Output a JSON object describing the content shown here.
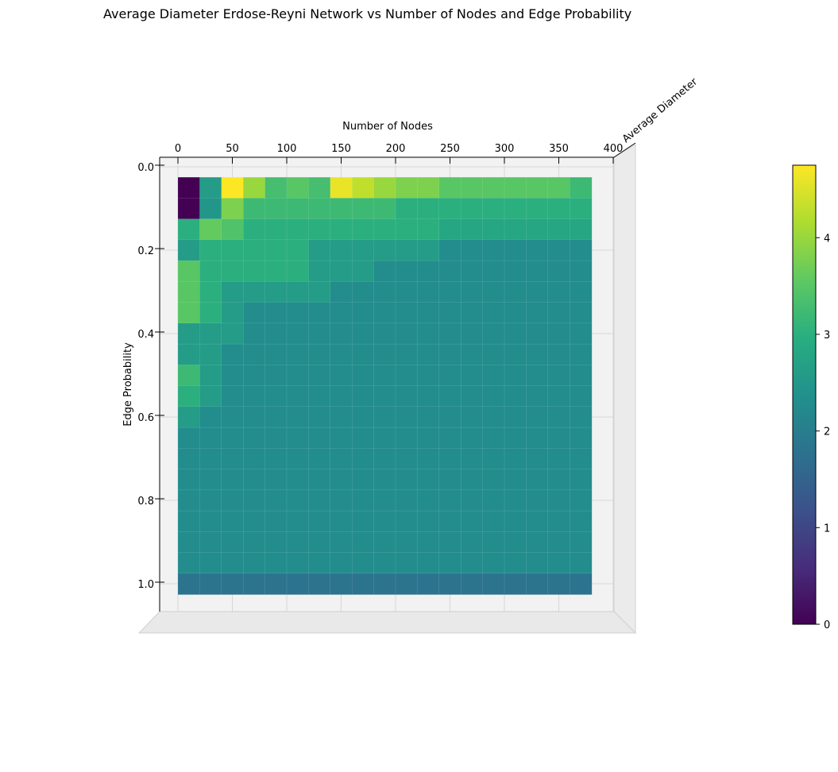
{
  "chart_data": {
    "type": "surface",
    "title": "Average Diameter Erdose-Reyni Network vs Number of Nodes and Edge Probability",
    "xlabel": "Number of Nodes",
    "ylabel": "Edge Probability",
    "zlabel": "Average Diameter",
    "x_ticks": [
      "0",
      "50",
      "100",
      "150",
      "200",
      "250",
      "300",
      "350",
      "400"
    ],
    "y_ticks": [
      "0.0",
      "0.2",
      "0.4",
      "0.6",
      "0.8",
      "1.0"
    ],
    "xlim": [
      0,
      400
    ],
    "ylim": [
      0,
      1
    ],
    "colorbar": {
      "ticks": [
        "0",
        "1",
        "2",
        "3",
        "4"
      ],
      "range": [
        0,
        4.75
      ],
      "colormap": "viridis"
    },
    "nodes": [
      10,
      30,
      50,
      70,
      90,
      110,
      130,
      150,
      170,
      190,
      210,
      230,
      250,
      270,
      290,
      310,
      330,
      350,
      370
    ],
    "edge_probabilities": [
      0.05,
      0.1,
      0.15,
      0.2,
      0.25,
      0.3,
      0.35,
      0.4,
      0.45,
      0.5,
      0.55,
      0.6,
      0.65,
      0.7,
      0.75,
      0.8,
      0.85,
      0.9,
      0.95,
      1.0
    ],
    "z": [
      [
        0.0,
        2.6,
        4.75,
        4.0,
        3.3,
        3.5,
        3.3,
        4.6,
        4.3,
        4.0,
        3.8,
        3.8,
        3.5,
        3.5,
        3.5,
        3.5,
        3.5,
        3.5,
        3.2
      ],
      [
        0.0,
        2.5,
        3.8,
        3.2,
        3.2,
        3.2,
        3.2,
        3.2,
        3.2,
        3.2,
        3.0,
        3.0,
        3.0,
        3.0,
        3.0,
        3.0,
        3.0,
        3.0,
        3.0
      ],
      [
        3.0,
        3.6,
        3.4,
        3.0,
        3.0,
        3.0,
        3.0,
        3.0,
        3.0,
        3.0,
        3.0,
        3.0,
        2.8,
        2.8,
        2.8,
        2.8,
        2.8,
        2.8,
        2.8
      ],
      [
        2.6,
        3.0,
        3.0,
        3.0,
        3.0,
        3.0,
        2.6,
        2.6,
        2.6,
        2.6,
        2.6,
        2.6,
        2.3,
        2.3,
        2.3,
        2.3,
        2.3,
        2.3,
        2.3
      ],
      [
        3.5,
        3.0,
        3.0,
        3.0,
        3.0,
        3.0,
        2.6,
        2.6,
        2.6,
        2.3,
        2.3,
        2.3,
        2.3,
        2.3,
        2.3,
        2.3,
        2.3,
        2.3,
        2.3
      ],
      [
        3.5,
        3.0,
        2.6,
        2.6,
        2.6,
        2.6,
        2.6,
        2.3,
        2.3,
        2.3,
        2.3,
        2.3,
        2.3,
        2.3,
        2.3,
        2.3,
        2.3,
        2.3,
        2.3
      ],
      [
        3.5,
        3.0,
        2.6,
        2.3,
        2.3,
        2.3,
        2.3,
        2.3,
        2.3,
        2.3,
        2.3,
        2.3,
        2.3,
        2.3,
        2.3,
        2.3,
        2.3,
        2.3,
        2.3
      ],
      [
        2.6,
        2.6,
        2.6,
        2.3,
        2.3,
        2.3,
        2.3,
        2.3,
        2.3,
        2.3,
        2.3,
        2.3,
        2.3,
        2.3,
        2.3,
        2.3,
        2.3,
        2.3,
        2.3
      ],
      [
        2.6,
        2.6,
        2.3,
        2.3,
        2.3,
        2.3,
        2.3,
        2.3,
        2.3,
        2.3,
        2.3,
        2.3,
        2.3,
        2.3,
        2.3,
        2.3,
        2.3,
        2.3,
        2.3
      ],
      [
        3.2,
        2.6,
        2.3,
        2.3,
        2.3,
        2.3,
        2.3,
        2.3,
        2.3,
        2.3,
        2.3,
        2.3,
        2.3,
        2.3,
        2.3,
        2.3,
        2.3,
        2.3,
        2.3
      ],
      [
        3.0,
        2.6,
        2.3,
        2.3,
        2.3,
        2.3,
        2.3,
        2.3,
        2.3,
        2.3,
        2.3,
        2.3,
        2.3,
        2.3,
        2.3,
        2.3,
        2.3,
        2.3,
        2.3
      ],
      [
        2.6,
        2.3,
        2.3,
        2.3,
        2.3,
        2.3,
        2.3,
        2.3,
        2.3,
        2.3,
        2.3,
        2.3,
        2.3,
        2.3,
        2.3,
        2.3,
        2.3,
        2.3,
        2.3
      ],
      [
        2.3,
        2.3,
        2.3,
        2.3,
        2.3,
        2.3,
        2.3,
        2.3,
        2.3,
        2.3,
        2.3,
        2.3,
        2.3,
        2.3,
        2.3,
        2.3,
        2.3,
        2.3,
        2.3
      ],
      [
        2.3,
        2.3,
        2.3,
        2.3,
        2.3,
        2.3,
        2.3,
        2.3,
        2.3,
        2.3,
        2.3,
        2.3,
        2.3,
        2.3,
        2.3,
        2.3,
        2.3,
        2.3,
        2.3
      ],
      [
        2.3,
        2.3,
        2.3,
        2.3,
        2.3,
        2.3,
        2.3,
        2.3,
        2.3,
        2.3,
        2.3,
        2.3,
        2.3,
        2.3,
        2.3,
        2.3,
        2.3,
        2.3,
        2.3
      ],
      [
        2.3,
        2.3,
        2.3,
        2.3,
        2.3,
        2.3,
        2.3,
        2.3,
        2.3,
        2.3,
        2.3,
        2.3,
        2.3,
        2.3,
        2.3,
        2.3,
        2.3,
        2.3,
        2.3
      ],
      [
        2.3,
        2.3,
        2.3,
        2.3,
        2.3,
        2.3,
        2.3,
        2.3,
        2.3,
        2.3,
        2.3,
        2.3,
        2.3,
        2.3,
        2.3,
        2.3,
        2.3,
        2.3,
        2.3
      ],
      [
        2.3,
        2.3,
        2.3,
        2.3,
        2.3,
        2.3,
        2.3,
        2.3,
        2.3,
        2.3,
        2.3,
        2.3,
        2.3,
        2.3,
        2.3,
        2.3,
        2.3,
        2.3,
        2.3
      ],
      [
        2.3,
        2.3,
        2.3,
        2.3,
        2.3,
        2.3,
        2.3,
        2.3,
        2.3,
        2.3,
        2.3,
        2.3,
        2.3,
        2.3,
        2.3,
        2.3,
        2.3,
        2.3,
        2.3
      ],
      [
        1.8,
        1.8,
        1.8,
        1.8,
        1.8,
        1.8,
        1.8,
        1.8,
        1.8,
        1.8,
        1.8,
        1.8,
        1.8,
        1.8,
        1.8,
        1.8,
        1.8,
        1.8,
        1.8
      ]
    ],
    "grid": true
  }
}
